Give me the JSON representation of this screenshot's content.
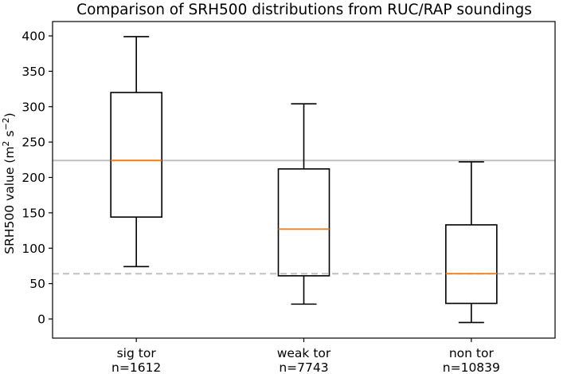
{
  "chart_data": {
    "type": "box",
    "title": "Comparison of SRH500 distributions from RUC/RAP soundings",
    "ylabel": "SRH500 value (m² s⁻²)",
    "ylabel_parts": {
      "base": "SRH500 value (m",
      "exp1": "2",
      "mid": " s",
      "exp2": "−2",
      "end": ")"
    },
    "ylim": [
      -25,
      415
    ],
    "yticks": [
      0,
      50,
      100,
      150,
      200,
      250,
      300,
      350,
      400
    ],
    "categories": [
      "sig tor",
      "weak tor",
      "non tor"
    ],
    "counts": [
      "n=1612",
      "n=7743",
      "n=10839"
    ],
    "boxes": [
      {
        "category": "sig tor",
        "whislo": 74,
        "q1": 144,
        "med": 224,
        "q3": 320,
        "whishi": 399
      },
      {
        "category": "weak tor",
        "whislo": 21,
        "q1": 61,
        "med": 127,
        "q3": 212,
        "whishi": 304
      },
      {
        "category": "non tor",
        "whislo": -5,
        "q1": 22,
        "med": 64,
        "q3": 133,
        "whishi": 222
      }
    ],
    "reference_lines": [
      {
        "y": 224,
        "style": "solid",
        "color": "#c0c0c0"
      },
      {
        "y": 64,
        "style": "dashed",
        "color": "#c0c0c0"
      }
    ],
    "grid": false,
    "colors": {
      "box": "#000000",
      "median": "#ff7f0e",
      "reference": "#c0c0c0"
    }
  }
}
